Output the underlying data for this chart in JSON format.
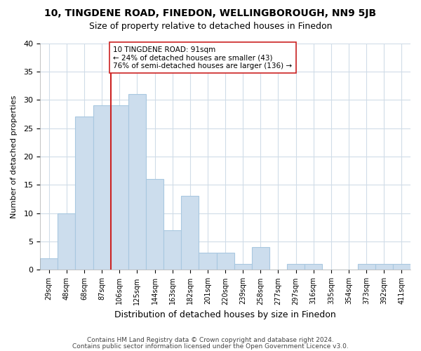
{
  "title1": "10, TINGDENE ROAD, FINEDON, WELLINGBOROUGH, NN9 5JB",
  "title2": "Size of property relative to detached houses in Finedon",
  "xlabel": "Distribution of detached houses by size in Finedon",
  "ylabel": "Number of detached properties",
  "categories": [
    "29sqm",
    "48sqm",
    "68sqm",
    "87sqm",
    "106sqm",
    "125sqm",
    "144sqm",
    "163sqm",
    "182sqm",
    "201sqm",
    "220sqm",
    "239sqm",
    "258sqm",
    "277sqm",
    "297sqm",
    "316sqm",
    "335sqm",
    "354sqm",
    "373sqm",
    "392sqm",
    "411sqm"
  ],
  "values": [
    2,
    10,
    27,
    29,
    29,
    31,
    16,
    7,
    13,
    3,
    3,
    1,
    4,
    0,
    1,
    1,
    0,
    0,
    1,
    1,
    1
  ],
  "bar_color": "#ccdded",
  "bar_edge_color": "#a8c8e0",
  "vline_x": 3.5,
  "vline_color": "#cc2222",
  "annotation_line1": "10 TINGDENE ROAD: 91sqm",
  "annotation_line2": "← 24% of detached houses are smaller (43)",
  "annotation_line3": "76% of semi-detached houses are larger (136) →",
  "annotation_box_color": "white",
  "annotation_box_edge": "#cc2222",
  "ylim": [
    0,
    40
  ],
  "yticks": [
    0,
    5,
    10,
    15,
    20,
    25,
    30,
    35,
    40
  ],
  "footer1": "Contains HM Land Registry data © Crown copyright and database right 2024.",
  "footer2": "Contains public sector information licensed under the Open Government Licence v3.0.",
  "bg_color": "#ffffff",
  "plot_bg_color": "#ffffff",
  "grid_color": "#d0dce8"
}
